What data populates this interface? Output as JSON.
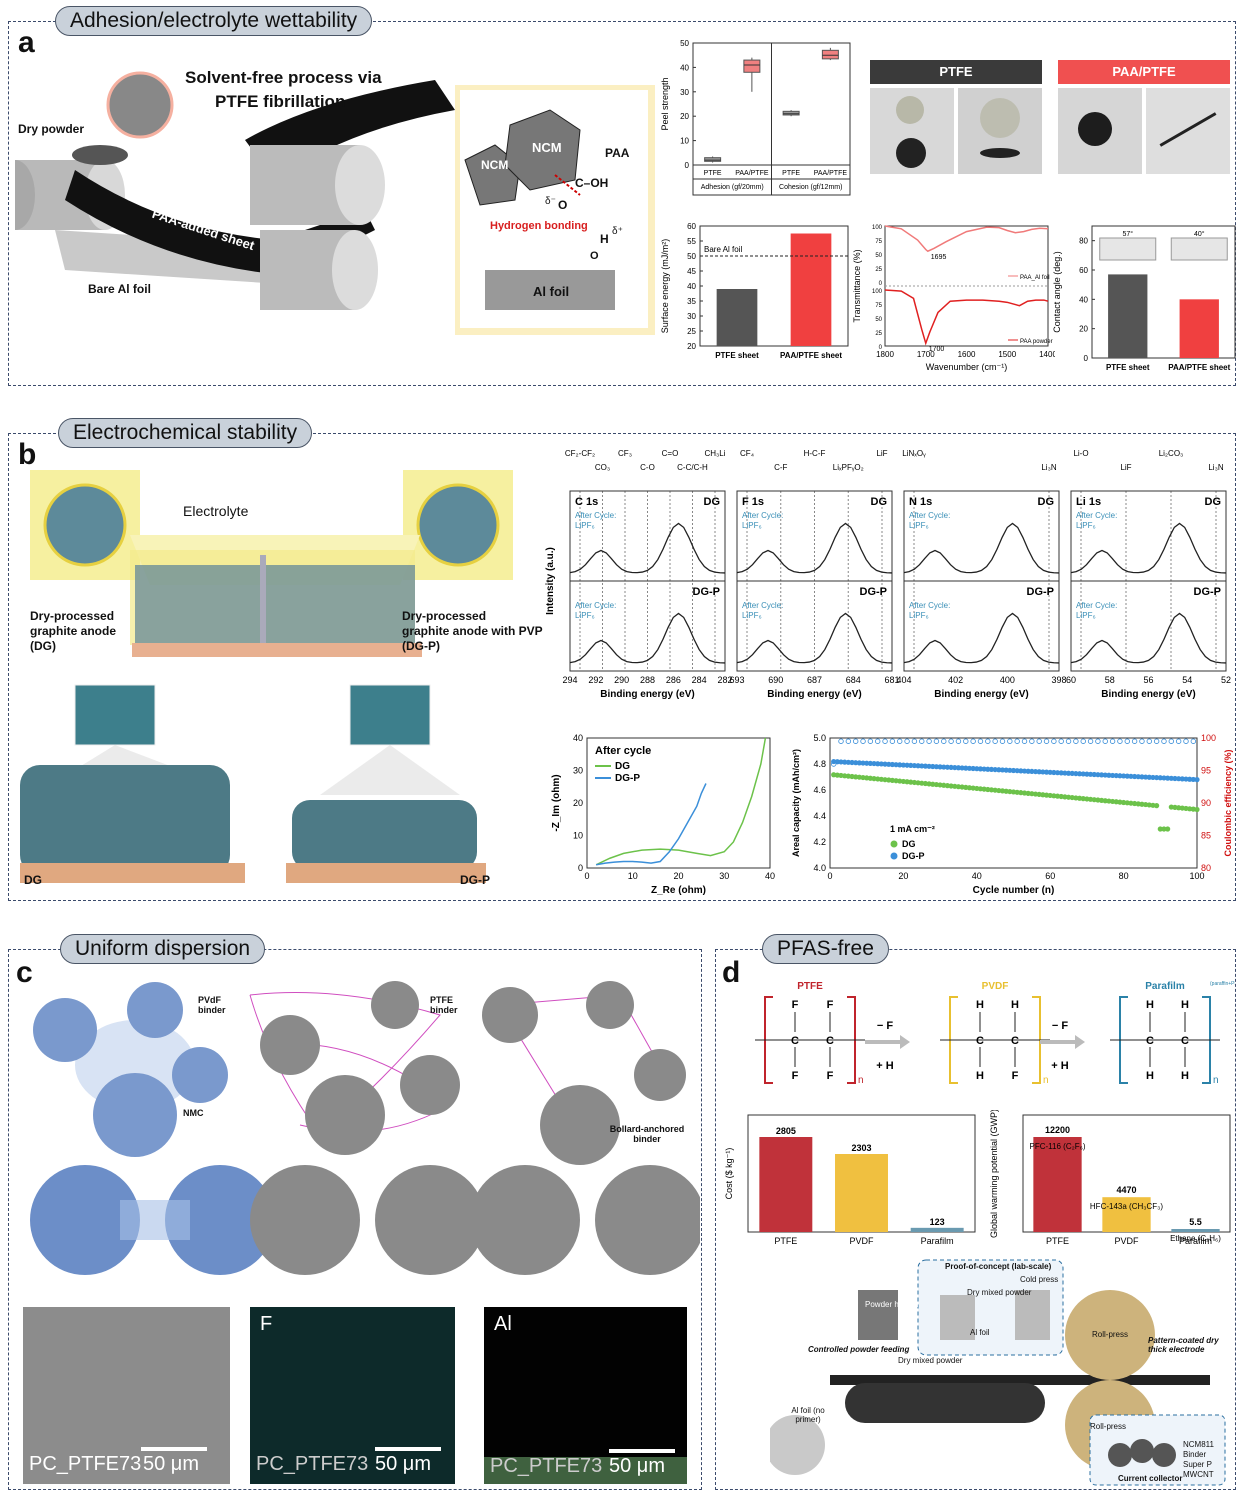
{
  "sections": {
    "a": {
      "letter": "a",
      "label": "Adhesion/electrolyte wettability"
    },
    "b": {
      "letter": "b",
      "label": "Electrochemical stability"
    },
    "c": {
      "letter": "c",
      "label": "Uniform dispersion"
    },
    "d": {
      "letter": "d",
      "label": "PFAS-free"
    }
  },
  "panel_a": {
    "title_line1": "Solvent-free process via",
    "title_line2": "PTFE fibrillation",
    "dry_powder": "Dry powder",
    "sheet": "PAA-added sheet",
    "bare_al": "Bare Al foil",
    "ncm1": "NCM",
    "ncm2": "NCM",
    "paa": "PAA",
    "c_oh": "C–OH",
    "o": "O",
    "delta_minus": "δ⁻",
    "h": "H",
    "delta_plus": "δ⁺",
    "o2": "O",
    "hbond": "Hydrogen bonding",
    "al_foil": "Al foil",
    "photo_ptfe": "PTFE",
    "photo_paa": "PAA/PTFE"
  },
  "panel_b": {
    "electrolyte": "Electrolyte",
    "dg_desc1": "Dry-processed",
    "dg_desc2": "graphite anode",
    "dg_desc3": "(DG)",
    "dgp_desc1": "Dry-processed",
    "dgp_desc2": "graphite anode with PVP",
    "dgp_desc3": "(DG-P)",
    "dg": "DG",
    "dgp": "DG-P"
  },
  "panel_c": {
    "pvdf": "PVdF binder",
    "ptfe": "PTFE binder",
    "nmc": "NMC",
    "bollard": "Bollard-anchored binder",
    "sem": [
      {
        "tag": "",
        "caption": "PC_PTFE73",
        "scale": "50 μm"
      },
      {
        "tag": "F",
        "caption": "PC_PTFE73",
        "scale": "50 μm"
      },
      {
        "tag": "Al",
        "caption": "PC_PTFE73",
        "scale": "50 μm"
      }
    ]
  },
  "panel_d": {
    "ptfe": "PTFE",
    "pvdf": "PVDF",
    "parafilm": "Parafilm",
    "parafilm_sup": "(paraffin+PE)",
    "minus_f": "− F",
    "plus_h": "+ H",
    "atoms": {
      "f": "F",
      "c": "C",
      "h": "H",
      "n": "n"
    },
    "process": {
      "poc": "Proof-of-concept (lab-scale)",
      "dry_mixed": "Dry mixed powder",
      "cold_press": "Cold press",
      "al_foil": "Al foil",
      "hopper": "Powder hopper",
      "controlled": "Controlled powder feeding",
      "dry_mixed2": "Dry mixed powder",
      "roll_press1": "Roll-press",
      "roll_press2": "Roll-press",
      "pattern": "Pattern-coated dry thick electrode",
      "al_foil2": "Al foil (no primer)",
      "legend": [
        "NCM811",
        "Binder",
        "Super P",
        "MWCNT"
      ],
      "current": "Current collector"
    }
  },
  "chart_data": [
    {
      "id": "peel",
      "type": "box",
      "ylabel": "Peel strength",
      "ylim": [
        0,
        50
      ],
      "yticks": [
        0,
        10,
        20,
        30,
        40,
        50
      ],
      "groups": [
        {
          "label": "Adhesion (gf/20mm)",
          "categories": [
            "PTFE",
            "PAA/PTFE"
          ]
        },
        {
          "label": "Cohesion (gf/12mm)",
          "categories": [
            "PTFE",
            "PAA/PTFE"
          ]
        }
      ],
      "boxes": [
        {
          "category": "PTFE",
          "group": 0,
          "min": 1,
          "q1": 1.5,
          "median": 2,
          "q3": 3,
          "max": 3.5,
          "color": "#9a9a9a"
        },
        {
          "category": "PAA/PTFE",
          "group": 0,
          "min": 30,
          "q1": 38,
          "median": 41,
          "q3": 43,
          "max": 44,
          "color": "#f08080"
        },
        {
          "category": "PTFE",
          "group": 1,
          "min": 20,
          "q1": 20.5,
          "median": 21,
          "q3": 22,
          "max": 22.5,
          "color": "#9a9a9a"
        },
        {
          "category": "PAA/PTFE",
          "group": 1,
          "min": 43,
          "q1": 43.5,
          "median": 45,
          "q3": 47,
          "max": 48,
          "color": "#f08080"
        }
      ]
    },
    {
      "id": "surface",
      "type": "bar",
      "ylabel": "Surface energy (mJ/m²)",
      "ylim": [
        20,
        60
      ],
      "yticks": [
        20,
        25,
        30,
        35,
        40,
        45,
        50,
        55,
        60
      ],
      "categories": [
        "PTFE sheet",
        "PAA/PTFE sheet"
      ],
      "values": [
        39,
        57.5
      ],
      "colors": [
        "#555555",
        "#f04040"
      ],
      "reference": {
        "label": "Bare Al foil",
        "value": 50
      }
    },
    {
      "id": "ftir",
      "type": "line",
      "xlabel": "Wavenumber (cm⁻¹)",
      "ylabel": "Transmittance (%)",
      "xlim": [
        1800,
        1400
      ],
      "xticks": [
        1800,
        1700,
        1600,
        1500,
        1400
      ],
      "yticks": [
        0,
        25,
        50,
        75,
        100
      ],
      "series": [
        {
          "name": "PAA_Al foil",
          "color": "#f07a7a",
          "peak": "1695",
          "x": [
            1800,
            1760,
            1720,
            1700,
            1695,
            1680,
            1650,
            1600,
            1550,
            1520,
            1500,
            1480,
            1460,
            1440,
            1420,
            1400
          ],
          "y": [
            100,
            95,
            75,
            58,
            55,
            60,
            72,
            90,
            98,
            97,
            92,
            88,
            90,
            94,
            96,
            95
          ]
        },
        {
          "name": "PAA powder",
          "color": "#e02020",
          "peak": "1700",
          "x": [
            1800,
            1760,
            1730,
            1710,
            1700,
            1690,
            1670,
            1640,
            1600,
            1560,
            1520,
            1500,
            1470,
            1450,
            1430,
            1410,
            1400
          ],
          "y": [
            100,
            98,
            85,
            30,
            5,
            25,
            60,
            80,
            82,
            82,
            80,
            78,
            72,
            80,
            82,
            82,
            80
          ]
        }
      ]
    },
    {
      "id": "contact",
      "type": "bar",
      "ylabel": "Contact angle (deg.)",
      "ylim": [
        0,
        90
      ],
      "yticks": [
        0,
        20,
        40,
        60,
        80
      ],
      "categories": [
        "PTFE sheet",
        "PAA/PTFE sheet"
      ],
      "values": [
        57,
        40
      ],
      "colors": [
        "#555555",
        "#f04040"
      ],
      "annotations": [
        "57°",
        "40°"
      ]
    },
    {
      "id": "xps",
      "type": "line",
      "ylabel": "Intensity (a.u.)",
      "xlabel": "Binding energy (eV)",
      "legend_note": "After Cycle:",
      "legend_species": "LiPF₆",
      "peak_labels": [
        {
          "text": "CF₂-CF₂"
        },
        {
          "text": "CO₃"
        },
        {
          "text": "CF₃"
        },
        {
          "text": "C-O"
        },
        {
          "text": "C=O"
        },
        {
          "text": "C-C/C-H"
        },
        {
          "text": "CH₃Li"
        },
        {
          "text": "CF₄"
        },
        {
          "text": "C-F"
        },
        {
          "text": "H-C-F"
        },
        {
          "text": "LiₓPFᵧO₂"
        },
        {
          "text": "LiF"
        },
        {
          "text": "LiNₓOᵧ"
        },
        {
          "text": "Li₃N"
        },
        {
          "text": "Li-O"
        },
        {
          "text": "LiF"
        },
        {
          "text": "Li₂CO₃"
        },
        {
          "text": "Li₃N"
        }
      ],
      "panels": [
        {
          "element": "C 1s",
          "xticks": [
            294,
            292,
            290,
            288,
            286,
            284,
            282
          ],
          "rows": [
            "DG",
            "DG-P"
          ]
        },
        {
          "element": "F 1s",
          "xticks": [
            693,
            690,
            687,
            684,
            681
          ],
          "rows": [
            "DG",
            "DG-P"
          ]
        },
        {
          "element": "N 1s",
          "xticks": [
            404,
            402,
            400,
            398
          ],
          "rows": [
            "DG",
            "DG-P"
          ]
        },
        {
          "element": "Li 1s",
          "xticks": [
            60,
            58,
            56,
            54,
            52
          ],
          "rows": [
            "DG",
            "DG-P"
          ]
        }
      ]
    },
    {
      "id": "eis",
      "type": "line",
      "title": "After cycle",
      "xlabel": "Z_Re (ohm)",
      "ylabel": "-Z_Im (ohm)",
      "xlim": [
        0,
        40
      ],
      "ylim": [
        0,
        40
      ],
      "xticks": [
        0,
        10,
        20,
        30,
        40
      ],
      "yticks": [
        0,
        10,
        20,
        30,
        40
      ],
      "series": [
        {
          "name": "DG",
          "color": "#6cc24a",
          "x": [
            2,
            5,
            8,
            12,
            16,
            20,
            24,
            27,
            30,
            32,
            34,
            36,
            38,
            39
          ],
          "y": [
            1,
            3,
            4.5,
            5.5,
            5.8,
            5.5,
            4.5,
            3.8,
            5,
            8,
            14,
            22,
            32,
            40
          ]
        },
        {
          "name": "DG-P",
          "color": "#3b8fd9",
          "x": [
            2,
            4,
            6,
            8,
            10,
            12,
            14,
            16,
            18,
            20,
            22,
            24,
            25,
            26
          ],
          "y": [
            1,
            1.5,
            1.8,
            2,
            2,
            1.8,
            1.5,
            2,
            5,
            9,
            14,
            19,
            23,
            26
          ]
        }
      ]
    },
    {
      "id": "cycle",
      "type": "scatter",
      "xlabel": "Cycle number (n)",
      "ylabel": "Areal capacity (mAh/cm²)",
      "y2label": "Coulombic efficiency (%)",
      "xlim": [
        0,
        100
      ],
      "ylim": [
        4.0,
        5.0
      ],
      "y2lim": [
        80,
        100
      ],
      "xticks": [
        0,
        20,
        40,
        60,
        80,
        100
      ],
      "yticks": [
        4.0,
        4.2,
        4.4,
        4.6,
        4.8,
        5.0
      ],
      "y2ticks": [
        80,
        85,
        90,
        95,
        100
      ],
      "legend_title": "1 mA cm⁻²",
      "series": [
        {
          "name": "DG",
          "color": "#6cc24a",
          "start": 4.72,
          "end": 4.45,
          "dip_at": 90,
          "dip_to": 4.3
        },
        {
          "name": "DG-P",
          "color": "#3b8fd9",
          "start": 4.82,
          "end": 4.68
        },
        {
          "name": "CE",
          "color": "#3b8fd9",
          "ce": 99.5,
          "start": 96
        }
      ]
    },
    {
      "id": "cost",
      "type": "bar",
      "ylabel": "Cost ($ kg⁻¹)",
      "categories": [
        "PTFE",
        "PVDF",
        "Parafilm"
      ],
      "values": [
        2805,
        2303,
        123
      ],
      "colors": [
        "#c0323a",
        "#f0c040",
        "#6a9ab0"
      ]
    },
    {
      "id": "gwp",
      "type": "bar",
      "ylabel": "Global warming potential (GWP)",
      "categories": [
        "PTFE",
        "PVDF",
        "Parafilm"
      ],
      "values": [
        12200,
        4470,
        5.5
      ],
      "compounds": [
        "PFC-116 (C₂F₆)",
        "HFC-143a (CH₃CF₃)",
        "Ethane (C₂H₆)"
      ],
      "value_labels": [
        "12200",
        "4470",
        "5.5"
      ],
      "colors": [
        "#c0323a",
        "#f0c040",
        "#6a9ab0"
      ]
    }
  ]
}
